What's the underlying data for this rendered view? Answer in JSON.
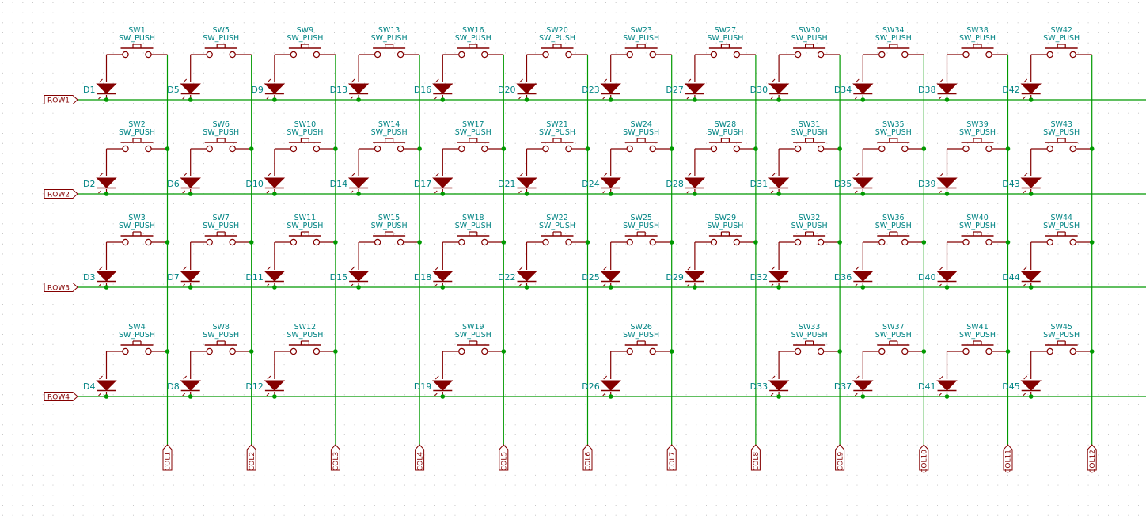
{
  "schematic": {
    "colors": {
      "background": "#ffffff",
      "grid_dot": "#b8b8b8",
      "wire": "#009900",
      "junction": "#009900",
      "component": "#840000",
      "diode_fill": "#840000",
      "label_text": "#008484",
      "net_label_text": "#840000"
    },
    "part_value": "SW_PUSH",
    "rows": [
      "ROW1",
      "ROW2",
      "ROW3",
      "ROW4"
    ],
    "columns": [
      "COL1",
      "COL2",
      "COL3",
      "COL4",
      "COL5",
      "COL6",
      "COL7",
      "COL8",
      "COL9",
      "COL10",
      "COL11",
      "COL12"
    ],
    "grid": [
      [
        [
          "SW1",
          "D1"
        ],
        [
          "SW2",
          "D2"
        ],
        [
          "SW3",
          "D3"
        ],
        [
          "SW4",
          "D4"
        ]
      ],
      [
        [
          "SW5",
          "D5"
        ],
        [
          "SW6",
          "D6"
        ],
        [
          "SW7",
          "D7"
        ],
        [
          "SW8",
          "D8"
        ]
      ],
      [
        [
          "SW9",
          "D9"
        ],
        [
          "SW10",
          "D10"
        ],
        [
          "SW11",
          "D11"
        ],
        [
          "SW12",
          "D12"
        ]
      ],
      [
        [
          "SW13",
          "D13"
        ],
        [
          "SW14",
          "D14"
        ],
        [
          "SW15",
          "D15"
        ],
        null
      ],
      [
        [
          "SW16",
          "D16"
        ],
        [
          "SW17",
          "D17"
        ],
        [
          "SW18",
          "D18"
        ],
        [
          "SW19",
          "D19"
        ]
      ],
      [
        [
          "SW20",
          "D20"
        ],
        [
          "SW21",
          "D21"
        ],
        [
          "SW22",
          "D22"
        ],
        null
      ],
      [
        [
          "SW23",
          "D23"
        ],
        [
          "SW24",
          "D24"
        ],
        [
          "SW25",
          "D25"
        ],
        [
          "SW26",
          "D26"
        ]
      ],
      [
        [
          "SW27",
          "D27"
        ],
        [
          "SW28",
          "D28"
        ],
        [
          "SW29",
          "D29"
        ],
        null
      ],
      [
        [
          "SW30",
          "D30"
        ],
        [
          "SW31",
          "D31"
        ],
        [
          "SW32",
          "D32"
        ],
        [
          "SW33",
          "D33"
        ]
      ],
      [
        [
          "SW34",
          "D34"
        ],
        [
          "SW35",
          "D35"
        ],
        [
          "SW36",
          "D36"
        ],
        [
          "SW37",
          "D37"
        ]
      ],
      [
        [
          "SW38",
          "D38"
        ],
        [
          "SW39",
          "D39"
        ],
        [
          "SW40",
          "D40"
        ],
        [
          "SW41",
          "D41"
        ]
      ],
      [
        [
          "SW42",
          "D42"
        ],
        [
          "SW43",
          "D43"
        ],
        [
          "SW44",
          "D44"
        ],
        [
          "SW45",
          "D45"
        ]
      ]
    ]
  }
}
